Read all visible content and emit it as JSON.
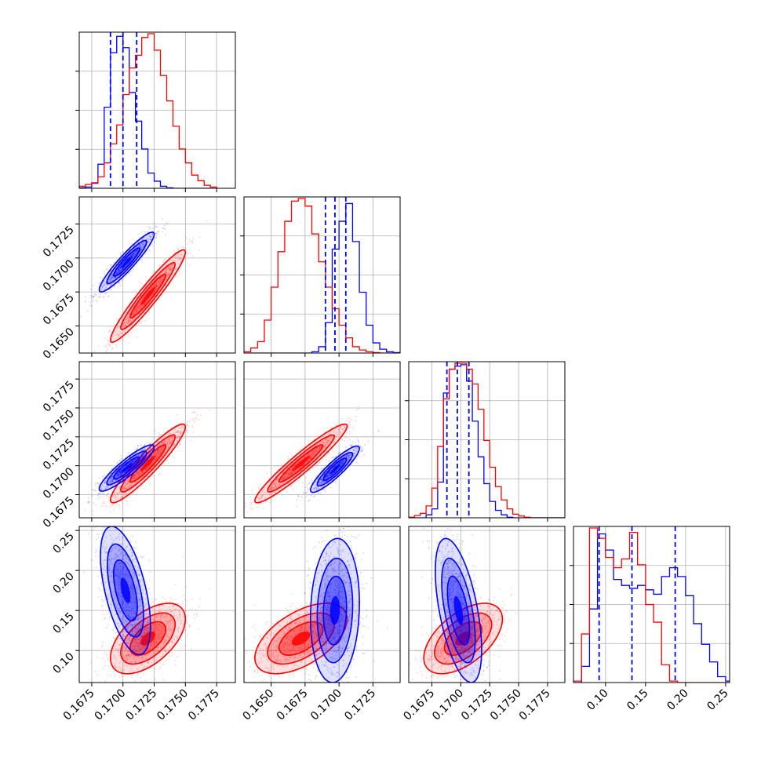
{
  "chart_data": {
    "type": "corner",
    "grid": true,
    "colors": {
      "set_a": "#0000ff",
      "set_b": "#ff0000"
    },
    "variables": [
      {
        "range": [
          0.1665,
          0.179
        ],
        "ticks": [
          "0.1675",
          "0.1700",
          "0.1725",
          "0.1750",
          "0.1775"
        ],
        "tick_values": [
          0.1675,
          0.17,
          0.1725,
          0.175,
          0.1775
        ]
      },
      {
        "range": [
          0.163,
          0.1745
        ],
        "ticks": [
          "0.1650",
          "0.1675",
          "0.1700",
          "0.1725"
        ],
        "tick_values": [
          0.165,
          0.1675,
          0.17,
          0.1725
        ]
      },
      {
        "range": [
          0.1655,
          0.179
        ],
        "ticks": [
          "0.1675",
          "0.1700",
          "0.1725",
          "0.1750",
          "0.1775"
        ],
        "tick_values": [
          0.1675,
          0.17,
          0.1725,
          0.175,
          0.1775
        ]
      },
      {
        "range": [
          0.06,
          0.255
        ],
        "ticks": [
          "0.10",
          "0.15",
          "0.20",
          "0.25"
        ],
        "tick_values": [
          0.1,
          0.15,
          0.2,
          0.25
        ]
      }
    ],
    "quantile_lines": [
      [
        0.169,
        0.17,
        0.1711
      ],
      [
        0.169,
        0.1697,
        0.1705
      ],
      [
        0.1688,
        0.1697,
        0.1707
      ],
      [
        0.092,
        0.133,
        0.187
      ]
    ],
    "histograms": [
      {
        "bin_edges": [
          0.1665,
          0.167,
          0.1675,
          0.168,
          0.1685,
          0.169,
          0.1695,
          0.17,
          0.1705,
          0.171,
          0.1715,
          0.172,
          0.1725,
          0.173,
          0.1735,
          0.174,
          0.1745,
          0.175,
          0.1755,
          0.176,
          0.1765,
          0.177,
          0.1775
        ],
        "series": [
          {
            "color": "blue",
            "counts": [
              2,
              5,
              20,
              95,
              320,
              535,
              600,
              555,
              378,
              265,
              155,
              60,
              28,
              8,
              2,
              0,
              0,
              0,
              0,
              0,
              0,
              0
            ]
          },
          {
            "color": "red",
            "counts": [
              8,
              15,
              22,
              45,
              100,
              175,
              250,
              370,
              475,
              525,
              595,
              610,
              545,
              445,
              345,
              245,
              155,
              100,
              52,
              30,
              12,
              5
            ]
          }
        ]
      },
      {
        "bin_edges": [
          0.163,
          0.1635,
          0.164,
          0.1645,
          0.165,
          0.1655,
          0.166,
          0.1665,
          0.167,
          0.1675,
          0.168,
          0.1685,
          0.169,
          0.1695,
          0.17,
          0.1705,
          0.171,
          0.1715,
          0.172,
          0.1725,
          0.173,
          0.1735,
          0.174,
          0.1745
        ],
        "series": [
          {
            "color": "blue",
            "counts": [
              0,
              0,
              0,
              0,
              0,
              0,
              0,
              0,
              0,
              0,
              5,
              25,
              120,
              410,
              520,
              590,
              440,
              240,
              110,
              40,
              15,
              5,
              2
            ]
          },
          {
            "color": "red",
            "counts": [
              5,
              20,
              45,
              130,
              260,
              400,
              520,
              600,
              610,
              580,
              470,
              360,
              260,
              175,
              110,
              60,
              25,
              12,
              5,
              2,
              0,
              0,
              0
            ]
          }
        ]
      },
      {
        "bin_edges": [
          0.1655,
          0.166,
          0.1665,
          0.167,
          0.1675,
          0.168,
          0.1685,
          0.169,
          0.1695,
          0.17,
          0.1705,
          0.171,
          0.1715,
          0.172,
          0.1725,
          0.173,
          0.1735,
          0.174,
          0.1745,
          0.175,
          0.1755,
          0.176,
          0.1765,
          0.177,
          0.1775,
          0.178,
          0.1785,
          0.179
        ],
        "series": [
          {
            "color": "blue",
            "counts": [
              0,
              0,
              0,
              10,
              30,
              120,
              420,
              500,
              510,
              515,
              460,
              325,
              205,
              115,
              55,
              25,
              10,
              2,
              0,
              0,
              0,
              0,
              0,
              0,
              0,
              0,
              0
            ]
          },
          {
            "color": "red",
            "counts": [
              2,
              8,
              15,
              40,
              100,
              240,
              400,
              500,
              520,
              520,
              500,
              450,
              365,
              260,
              170,
              105,
              60,
              30,
              12,
              6,
              2,
              0,
              0,
              0,
              0,
              0,
              0
            ]
          }
        ]
      },
      {
        "bin_edges": [
          0.06,
          0.07,
          0.08,
          0.09,
          0.1,
          0.11,
          0.12,
          0.13,
          0.14,
          0.15,
          0.16,
          0.17,
          0.18,
          0.19,
          0.2,
          0.21,
          0.22,
          0.23,
          0.24,
          0.25,
          0.255
        ],
        "series": [
          {
            "color": "blue",
            "counts": [
              0,
              55,
              250,
              505,
              450,
              350,
              330,
              320,
              330,
              315,
              300,
              360,
              390,
              360,
              295,
              200,
              130,
              70,
              20,
              5
            ]
          },
          {
            "color": "red",
            "counts": [
              5,
              165,
              525,
              490,
              425,
              390,
              420,
              510,
              400,
              265,
              205,
              60,
              5,
              0,
              0,
              0,
              0,
              0,
              0,
              0
            ]
          }
        ]
      }
    ],
    "clouds": [
      {
        "row": 1,
        "col": 0,
        "series": [
          {
            "color": "blue",
            "mean": [
              0.1703,
              0.1697
            ],
            "sd": [
              0.0011,
              0.0011
            ],
            "corr": 0.93
          },
          {
            "color": "red",
            "mean": [
              0.172,
              0.1672
            ],
            "sd": [
              0.0015,
              0.0017
            ],
            "corr": 0.95
          }
        ]
      },
      {
        "row": 2,
        "col": 0,
        "series": [
          {
            "color": "blue",
            "mean": [
              0.1703,
              0.1698
            ],
            "sd": [
              0.0011,
              0.001
            ],
            "corr": 0.9
          },
          {
            "color": "red",
            "mean": [
              0.172,
              0.1702
            ],
            "sd": [
              0.0015,
              0.0017
            ],
            "corr": 0.93
          }
        ]
      },
      {
        "row": 2,
        "col": 1,
        "series": [
          {
            "color": "blue",
            "mean": [
              0.1697,
              0.1697
            ],
            "sd": [
              0.0009,
              0.001
            ],
            "corr": 0.9
          },
          {
            "color": "red",
            "mean": [
              0.1672,
              0.1702
            ],
            "sd": [
              0.0017,
              0.0017
            ],
            "corr": 0.95
          }
        ]
      },
      {
        "row": 3,
        "col": 0,
        "series": [
          {
            "color": "blue",
            "mean": [
              0.1702,
              0.175
            ],
            "sd": [
              0.001,
              0.04
            ],
            "corr": -0.55
          },
          {
            "color": "red",
            "mean": [
              0.172,
              0.115
            ],
            "sd": [
              0.0015,
              0.022
            ],
            "corr": 0.55
          }
        ]
      },
      {
        "row": 3,
        "col": 1,
        "series": [
          {
            "color": "blue",
            "mean": [
              0.1697,
              0.15
            ],
            "sd": [
              0.0009,
              0.045
            ],
            "corr": 0.1
          },
          {
            "color": "red",
            "mean": [
              0.1672,
              0.115
            ],
            "sd": [
              0.0017,
              0.022
            ],
            "corr": 0.55
          }
        ]
      },
      {
        "row": 3,
        "col": 2,
        "series": [
          {
            "color": "blue",
            "mean": [
              0.1698,
              0.15
            ],
            "sd": [
              0.001,
              0.045
            ],
            "corr": -0.55
          },
          {
            "color": "red",
            "mean": [
              0.1702,
              0.115
            ],
            "sd": [
              0.0017,
              0.022
            ],
            "corr": 0.55
          }
        ]
      }
    ]
  }
}
